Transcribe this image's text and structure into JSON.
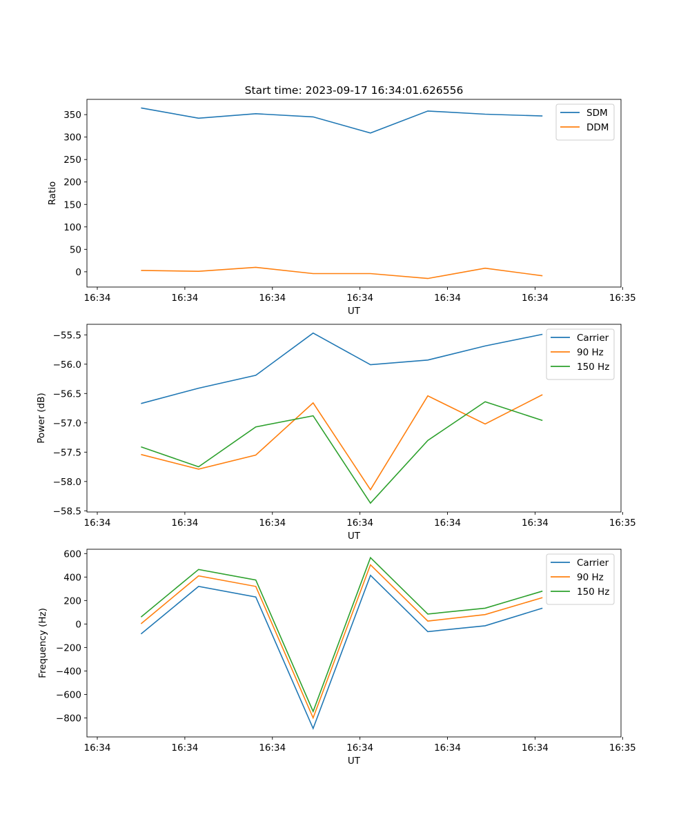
{
  "chart_data": [
    {
      "type": "line",
      "title": "Start time: 2023-09-17 16:34:01.626556",
      "xlabel": "UT",
      "ylabel": "Ratio",
      "x": [
        0.5,
        1.157,
        1.81,
        2.465,
        3.12,
        3.775,
        4.43,
        5.085
      ],
      "xlim": [
        0,
        6.1
      ],
      "x_ticks": [
        0,
        1,
        2,
        3,
        4,
        5,
        6
      ],
      "x_tick_labels": [
        "16:34",
        "16:34",
        "16:34",
        "16:34",
        "16:34",
        "16:34",
        "16:35"
      ],
      "ylim": [
        -34,
        384
      ],
      "y_ticks": [
        0,
        50,
        100,
        150,
        200,
        250,
        300,
        350
      ],
      "y_tick_labels": [
        "0",
        "50",
        "100",
        "150",
        "200",
        "250",
        "300",
        "350"
      ],
      "legend": "top-right",
      "series": [
        {
          "name": "SDM",
          "color": "#1f77b4",
          "values": [
            365,
            342,
            352,
            345,
            309,
            358,
            351,
            347
          ]
        },
        {
          "name": "DDM",
          "color": "#ff7f0e",
          "values": [
            3,
            1,
            10,
            -4,
            -4,
            -15,
            8,
            -9
          ]
        }
      ]
    },
    {
      "type": "line",
      "title": "",
      "xlabel": "UT",
      "ylabel": "Power (dB)",
      "x": [
        0.5,
        1.157,
        1.81,
        2.465,
        3.12,
        3.775,
        4.43,
        5.085
      ],
      "xlim": [
        0,
        6.1
      ],
      "x_ticks": [
        0,
        1,
        2,
        3,
        4,
        5,
        6
      ],
      "x_tick_labels": [
        "16:34",
        "16:34",
        "16:34",
        "16:34",
        "16:34",
        "16:34",
        "16:35"
      ],
      "ylim": [
        -58.52,
        -55.32
      ],
      "y_ticks": [
        -58.5,
        -58.0,
        -57.5,
        -57.0,
        -56.5,
        -56.0,
        -55.5
      ],
      "y_tick_labels": [
        "−58.5",
        "−58.0",
        "−57.5",
        "−57.0",
        "−56.5",
        "−56.0",
        "−55.5"
      ],
      "legend": "top-right",
      "series": [
        {
          "name": "Carrier",
          "color": "#1f77b4",
          "values": [
            -56.67,
            -56.41,
            -56.19,
            -55.47,
            -56.01,
            -55.93,
            -55.69,
            -55.49
          ]
        },
        {
          "name": "90 Hz",
          "color": "#ff7f0e",
          "values": [
            -57.54,
            -57.79,
            -57.55,
            -56.66,
            -58.14,
            -56.54,
            -57.02,
            -56.52
          ]
        },
        {
          "name": "150 Hz",
          "color": "#2ca02c",
          "values": [
            -57.41,
            -57.75,
            -57.07,
            -56.88,
            -58.37,
            -57.3,
            -56.64,
            -56.96
          ]
        }
      ]
    },
    {
      "type": "line",
      "title": "",
      "xlabel": "UT",
      "ylabel": "Frequency (Hz)",
      "x": [
        0.5,
        1.157,
        1.81,
        2.465,
        3.12,
        3.775,
        4.43,
        5.085
      ],
      "xlim": [
        0,
        6.1
      ],
      "x_ticks": [
        0,
        1,
        2,
        3,
        4,
        5,
        6
      ],
      "x_tick_labels": [
        "16:34",
        "16:34",
        "16:34",
        "16:34",
        "16:34",
        "16:34",
        "16:35"
      ],
      "ylim": [
        -962,
        637
      ],
      "y_ticks": [
        -800,
        -600,
        -400,
        -200,
        0,
        200,
        400,
        600
      ],
      "y_tick_labels": [
        "−800",
        "−600",
        "−400",
        "−200",
        "0",
        "200",
        "400",
        "600"
      ],
      "legend": "top-right",
      "series": [
        {
          "name": "Carrier",
          "color": "#1f77b4",
          "values": [
            -85,
            320,
            230,
            -890,
            415,
            -65,
            -15,
            135
          ]
        },
        {
          "name": "90 Hz",
          "color": "#ff7f0e",
          "values": [
            2,
            410,
            320,
            -800,
            505,
            25,
            80,
            225
          ]
        },
        {
          "name": "150 Hz",
          "color": "#2ca02c",
          "values": [
            60,
            465,
            375,
            -745,
            565,
            85,
            135,
            280
          ]
        }
      ]
    }
  ]
}
